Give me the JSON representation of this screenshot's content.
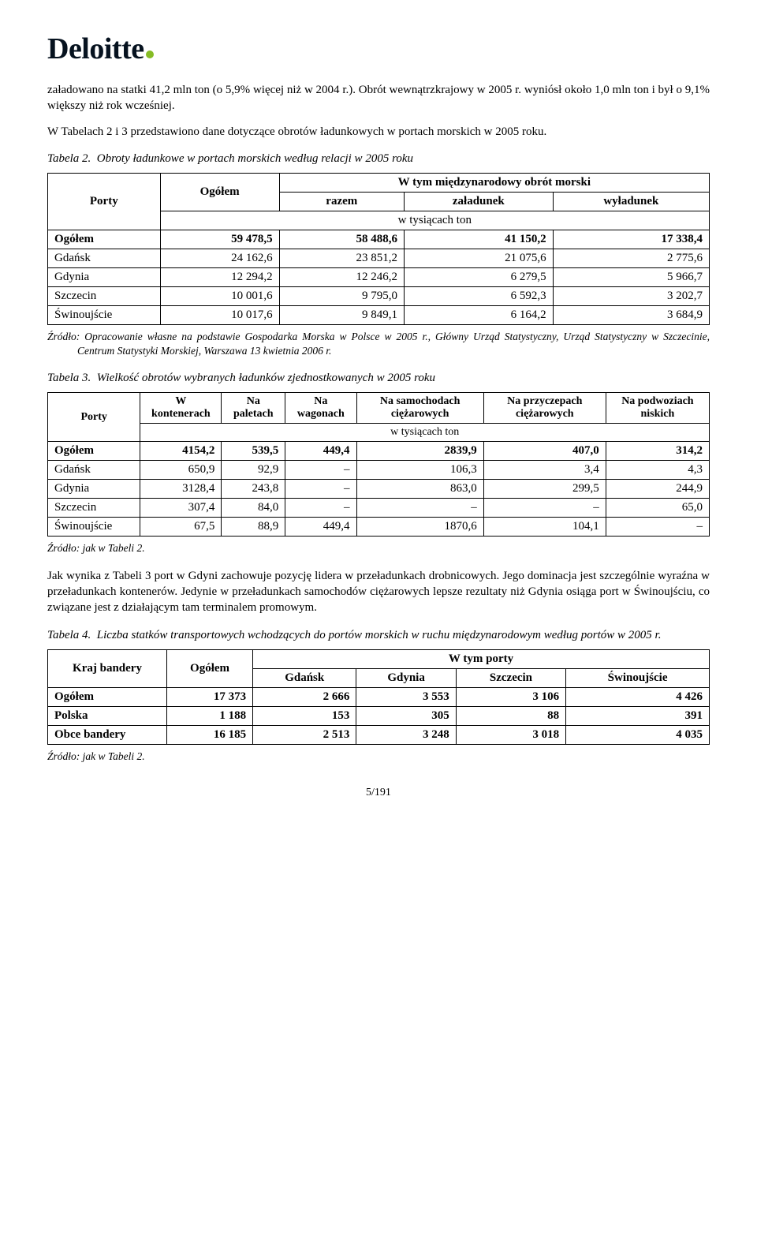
{
  "logo": {
    "text": "Deloitte"
  },
  "para1": "załadowano na statki 41,2 mln ton (o 5,9% więcej niż w 2004 r.). Obrót wewnątrzkrajowy w 2005 r. wyniósł około 1,0 mln ton i był o 9,1% większy niż rok wcześniej.",
  "para2": "W Tabelach 2 i 3 przedstawiono dane dotyczące obrotów ładunkowych w portach morskich w 2005 roku.",
  "table2": {
    "caption_lead": "Tabela 2.",
    "caption": "Obroty ładunkowe w portach morskich według relacji w 2005 roku",
    "h_porty": "Porty",
    "h_ogolem": "Ogółem",
    "h_wtym": "W tym międzynarodowy obrót morski",
    "h_razem": "razem",
    "h_zal": "załadunek",
    "h_wyl": "wyładunek",
    "h_unit": "w tysiącach ton",
    "rows": [
      {
        "label": "Ogółem",
        "c1": "59 478,5",
        "c2": "58 488,6",
        "c3": "41 150,2",
        "c4": "17 338,4",
        "bold": true
      },
      {
        "label": "Gdańsk",
        "c1": "24 162,6",
        "c2": "23 851,2",
        "c3": "21 075,6",
        "c4": "2 775,6"
      },
      {
        "label": "Gdynia",
        "c1": "12 294,2",
        "c2": "12 246,2",
        "c3": "6 279,5",
        "c4": "5 966,7"
      },
      {
        "label": "Szczecin",
        "c1": "10 001,6",
        "c2": "9 795,0",
        "c3": "6 592,3",
        "c4": "3 202,7"
      },
      {
        "label": "Świnoujście",
        "c1": "10 017,6",
        "c2": "9 849,1",
        "c3": "6 164,2",
        "c4": "3 684,9"
      }
    ],
    "source_lead": "Źródło:",
    "source": "Opracowanie własne na podstawie Gospodarka Morska w Polsce w 2005 r., Główny Urząd Statystyczny, Urząd Statystyczny w Szczecinie, Centrum Statystyki Morskiej, Warszawa 13 kwietnia 2006 r."
  },
  "table3": {
    "caption_lead": "Tabela 3.",
    "caption": "Wielkość obrotów wybranych ładunków zjednostkowanych w 2005 roku",
    "h_porty": "Porty",
    "h_c1": "W kontenerach",
    "h_c2": "Na paletach",
    "h_c3": "Na wagonach",
    "h_c4": "Na samochodach ciężarowych",
    "h_c5": "Na przyczepach ciężarowych",
    "h_c6": "Na podwoziach niskich",
    "h_unit": "w tysiącach ton",
    "rows": [
      {
        "label": "Ogółem",
        "c1": "4154,2",
        "c2": "539,5",
        "c3": "449,4",
        "c4": "2839,9",
        "c5": "407,0",
        "c6": "314,2",
        "bold": true
      },
      {
        "label": "Gdańsk",
        "c1": "650,9",
        "c2": "92,9",
        "c3": "–",
        "c4": "106,3",
        "c5": "3,4",
        "c6": "4,3"
      },
      {
        "label": "Gdynia",
        "c1": "3128,4",
        "c2": "243,8",
        "c3": "–",
        "c4": "863,0",
        "c5": "299,5",
        "c6": "244,9"
      },
      {
        "label": "Szczecin",
        "c1": "307,4",
        "c2": "84,0",
        "c3": "–",
        "c4": "–",
        "c5": "–",
        "c6": "65,0"
      },
      {
        "label": "Świnoujście",
        "c1": "67,5",
        "c2": "88,9",
        "c3": "449,4",
        "c4": "1870,6",
        "c5": "104,1",
        "c6": "–"
      }
    ],
    "source_lead": "Źródło:",
    "source": "jak w Tabeli 2."
  },
  "para3": "Jak wynika z Tabeli 3 port w Gdyni zachowuje pozycję lidera w przeładunkach drobnicowych. Jego dominacja jest szczególnie wyraźna w przeładunkach kontenerów. Jedynie w przeładunkach samochodów ciężarowych lepsze rezultaty niż Gdynia osiąga port w Świnoujściu, co związane jest z działającym tam terminalem promowym.",
  "table4": {
    "caption_lead": "Tabela 4.",
    "caption": "Liczba statków transportowych wchodzących do portów morskich w ruchu międzynarodowym według portów w 2005 r.",
    "h_kraj": "Kraj bandery",
    "h_ogolem": "Ogółem",
    "h_wtym": "W tym porty",
    "h_gdansk": "Gdańsk",
    "h_gdynia": "Gdynia",
    "h_szczecin": "Szczecin",
    "h_swin": "Świnoujście",
    "rows": [
      {
        "label": "Ogółem",
        "c1": "17 373",
        "c2": "2 666",
        "c3": "3 553",
        "c4": "3 106",
        "c5": "4 426",
        "bold": true
      },
      {
        "label": "Polska",
        "c1": "1 188",
        "c2": "153",
        "c3": "305",
        "c4": "88",
        "c5": "391",
        "bold": true
      },
      {
        "label": "Obce bandery",
        "c1": "16 185",
        "c2": "2 513",
        "c3": "3 248",
        "c4": "3 018",
        "c5": "4 035",
        "bold": true
      }
    ],
    "source_lead": "Źródło:",
    "source": "jak w Tabeli 2."
  },
  "pagenum": "5/191"
}
